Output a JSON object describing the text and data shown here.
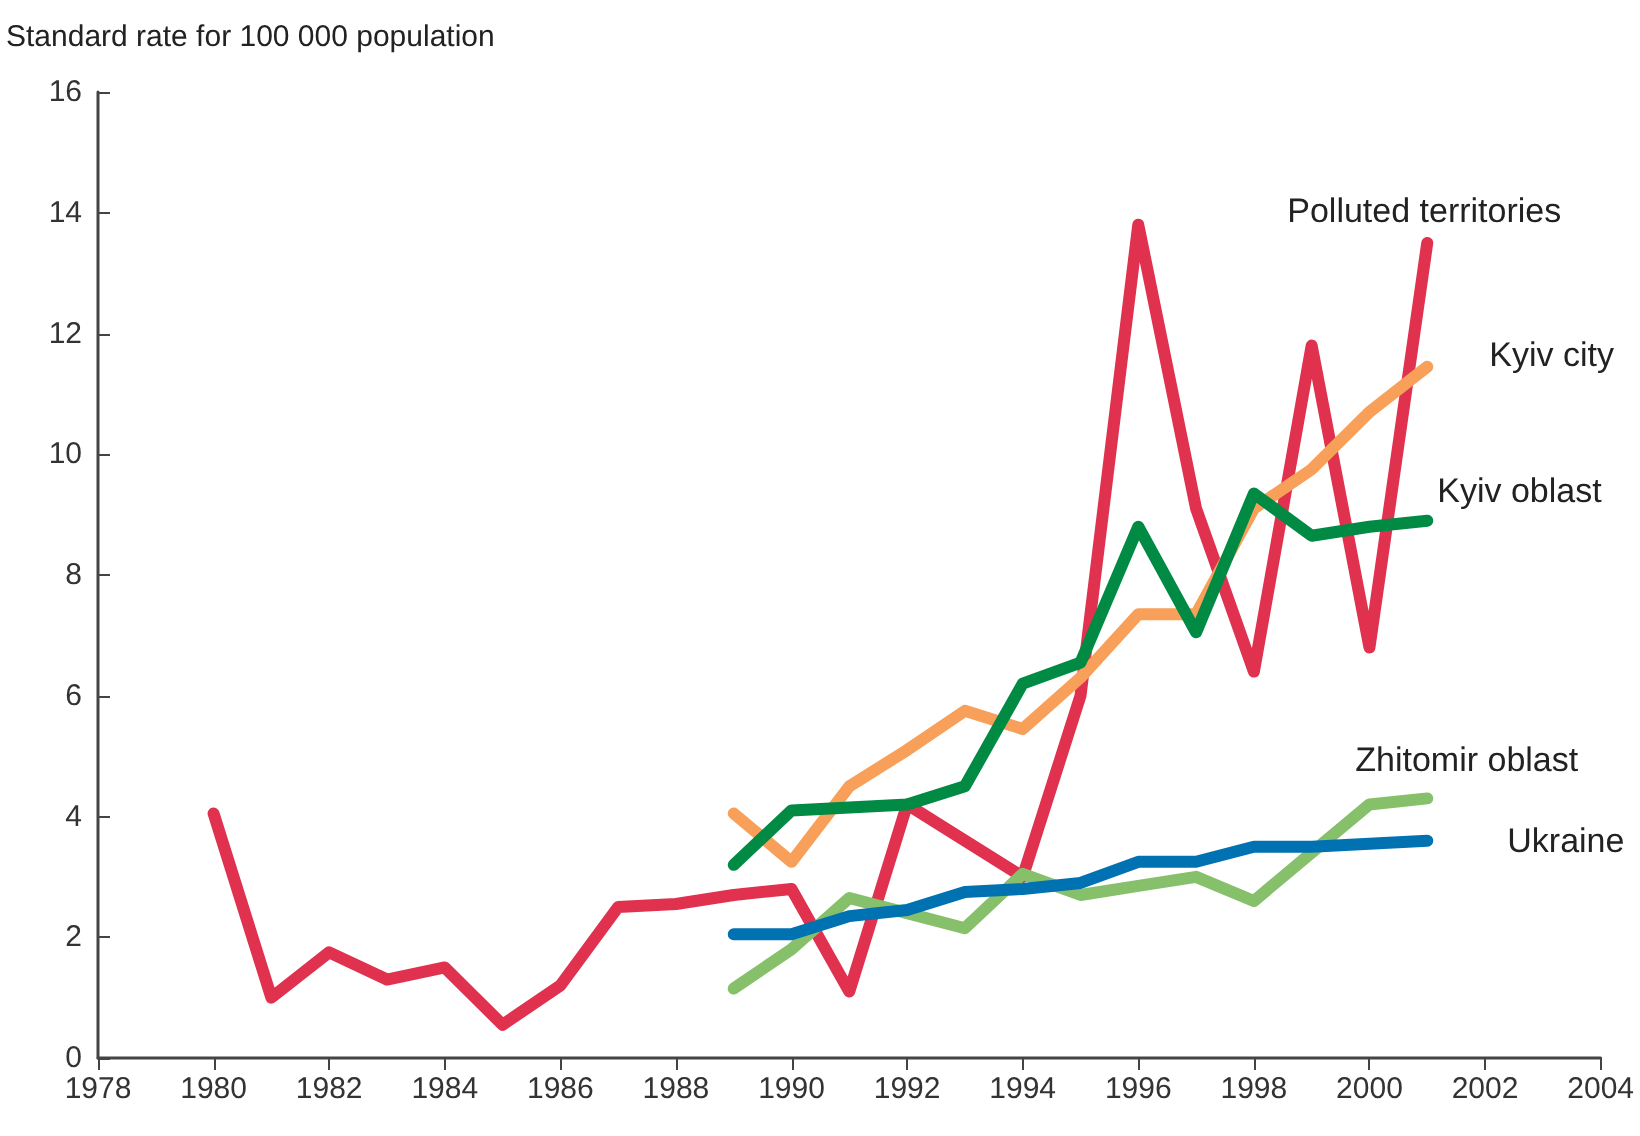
{
  "chart_data": {
    "type": "line",
    "ylabel": "Standard rate for 100 000 population",
    "x": [
      1980,
      1981,
      1982,
      1983,
      1984,
      1985,
      1986,
      1987,
      1988,
      1989,
      1990,
      1991,
      1992,
      1993,
      1994,
      1995,
      1996,
      1997,
      1998,
      1999,
      2000,
      2001
    ],
    "series": [
      {
        "name": "Polluted territories",
        "color": "#e0314f",
        "values": [
          4.05,
          1.0,
          1.75,
          1.3,
          1.5,
          0.55,
          1.2,
          2.5,
          2.55,
          2.7,
          2.8,
          1.1,
          4.2,
          3.6,
          3.0,
          6.0,
          13.8,
          9.1,
          6.4,
          11.8,
          6.8,
          13.5
        ]
      },
      {
        "name": "Kyiv city",
        "color": "#f8a05a",
        "values": [
          null,
          null,
          null,
          null,
          null,
          null,
          null,
          null,
          null,
          4.05,
          3.25,
          4.5,
          5.1,
          5.75,
          5.45,
          6.3,
          7.35,
          7.35,
          9.1,
          9.75,
          10.7,
          11.45
        ]
      },
      {
        "name": "Kyiv oblast",
        "color": "#008a44",
        "values": [
          null,
          null,
          null,
          null,
          null,
          null,
          null,
          null,
          null,
          3.2,
          4.1,
          4.15,
          4.2,
          4.5,
          6.2,
          6.55,
          8.8,
          7.05,
          9.35,
          8.65,
          8.8,
          8.9
        ]
      },
      {
        "name": "Zhitomir oblast",
        "color": "#86c06a",
        "values": [
          null,
          null,
          null,
          null,
          null,
          null,
          null,
          null,
          null,
          1.15,
          1.8,
          2.65,
          2.4,
          2.15,
          3.05,
          2.7,
          2.85,
          3.0,
          2.6,
          3.4,
          4.2,
          4.3
        ]
      },
      {
        "name": "Ukraine",
        "color": "#0072b2",
        "values": [
          null,
          null,
          null,
          null,
          null,
          null,
          null,
          null,
          null,
          2.05,
          2.05,
          2.35,
          2.45,
          2.75,
          2.8,
          2.9,
          3.25,
          3.25,
          3.5,
          3.5,
          3.55,
          3.6
        ]
      }
    ],
    "xlim": [
      1978,
      2004
    ],
    "xticks": [
      1978,
      1980,
      1982,
      1984,
      1986,
      1988,
      1990,
      1992,
      1994,
      1996,
      1998,
      2000,
      2002,
      2004
    ],
    "ylim": [
      0,
      16
    ],
    "yticks": [
      0,
      2,
      4,
      6,
      8,
      10,
      12,
      14,
      16
    ],
    "grid": false,
    "legend": false,
    "marker": "none",
    "line_style": "solid"
  }
}
